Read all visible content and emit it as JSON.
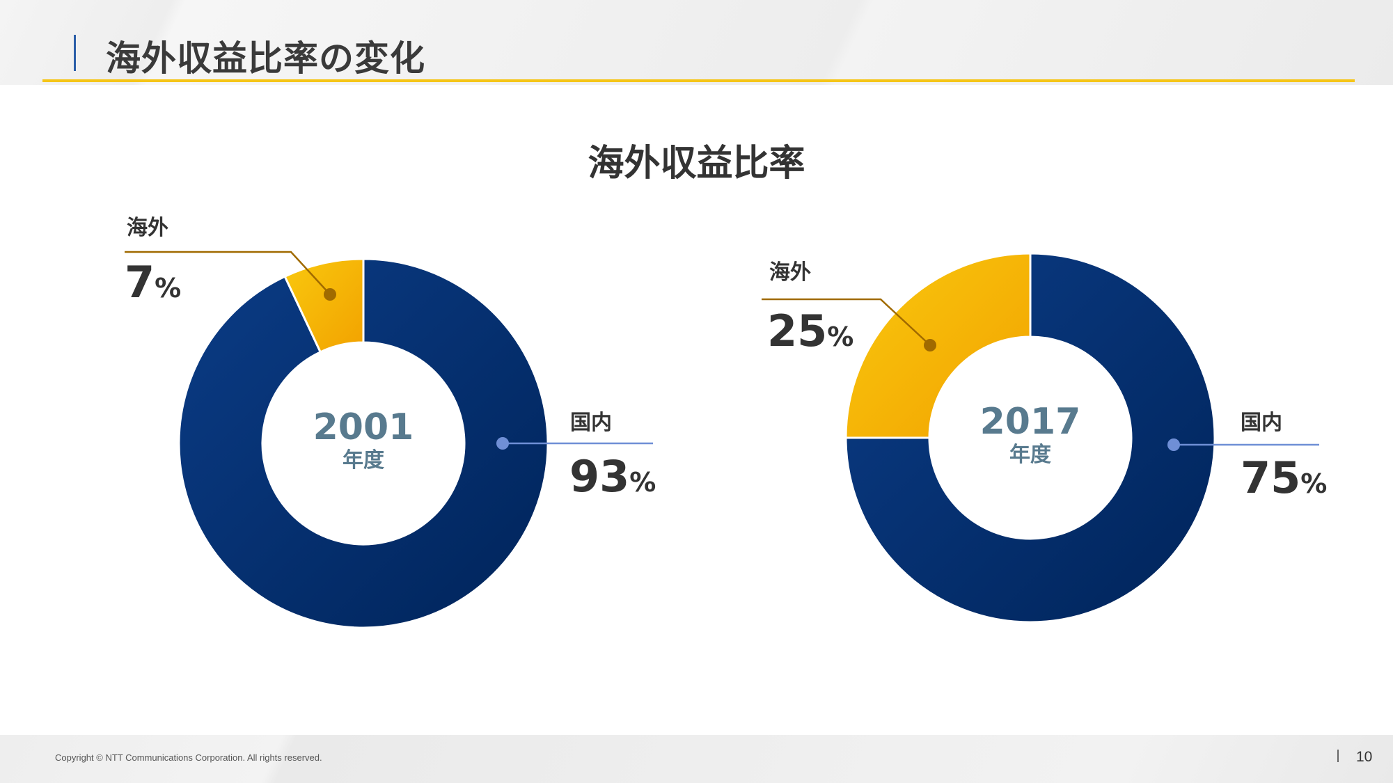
{
  "header": {
    "title": "海外収益比率の変化"
  },
  "chart_data": {
    "type": "pie",
    "title": "海外収益比率",
    "percent_unit": "%",
    "charts": [
      {
        "year": "2001",
        "unit": "年度",
        "slices": [
          {
            "name": "国内",
            "value": 93
          },
          {
            "name": "海外",
            "value": 7
          }
        ]
      },
      {
        "year": "2017",
        "unit": "年度",
        "slices": [
          {
            "name": "国内",
            "value": 75
          },
          {
            "name": "海外",
            "value": 25
          }
        ]
      }
    ]
  },
  "colors": {
    "domestic_start": "#0b3c86",
    "domestic_end": "#00245a",
    "overseas_start": "#f9c80e",
    "overseas_end": "#f2a200",
    "domestic_leader": "#6f8fd6",
    "overseas_leader": "#a06a00",
    "accent": "#f5c518"
  },
  "footer": {
    "copyright": "Copyright © NTT Communications Corporation. All rights reserved.",
    "page_number": "10"
  }
}
